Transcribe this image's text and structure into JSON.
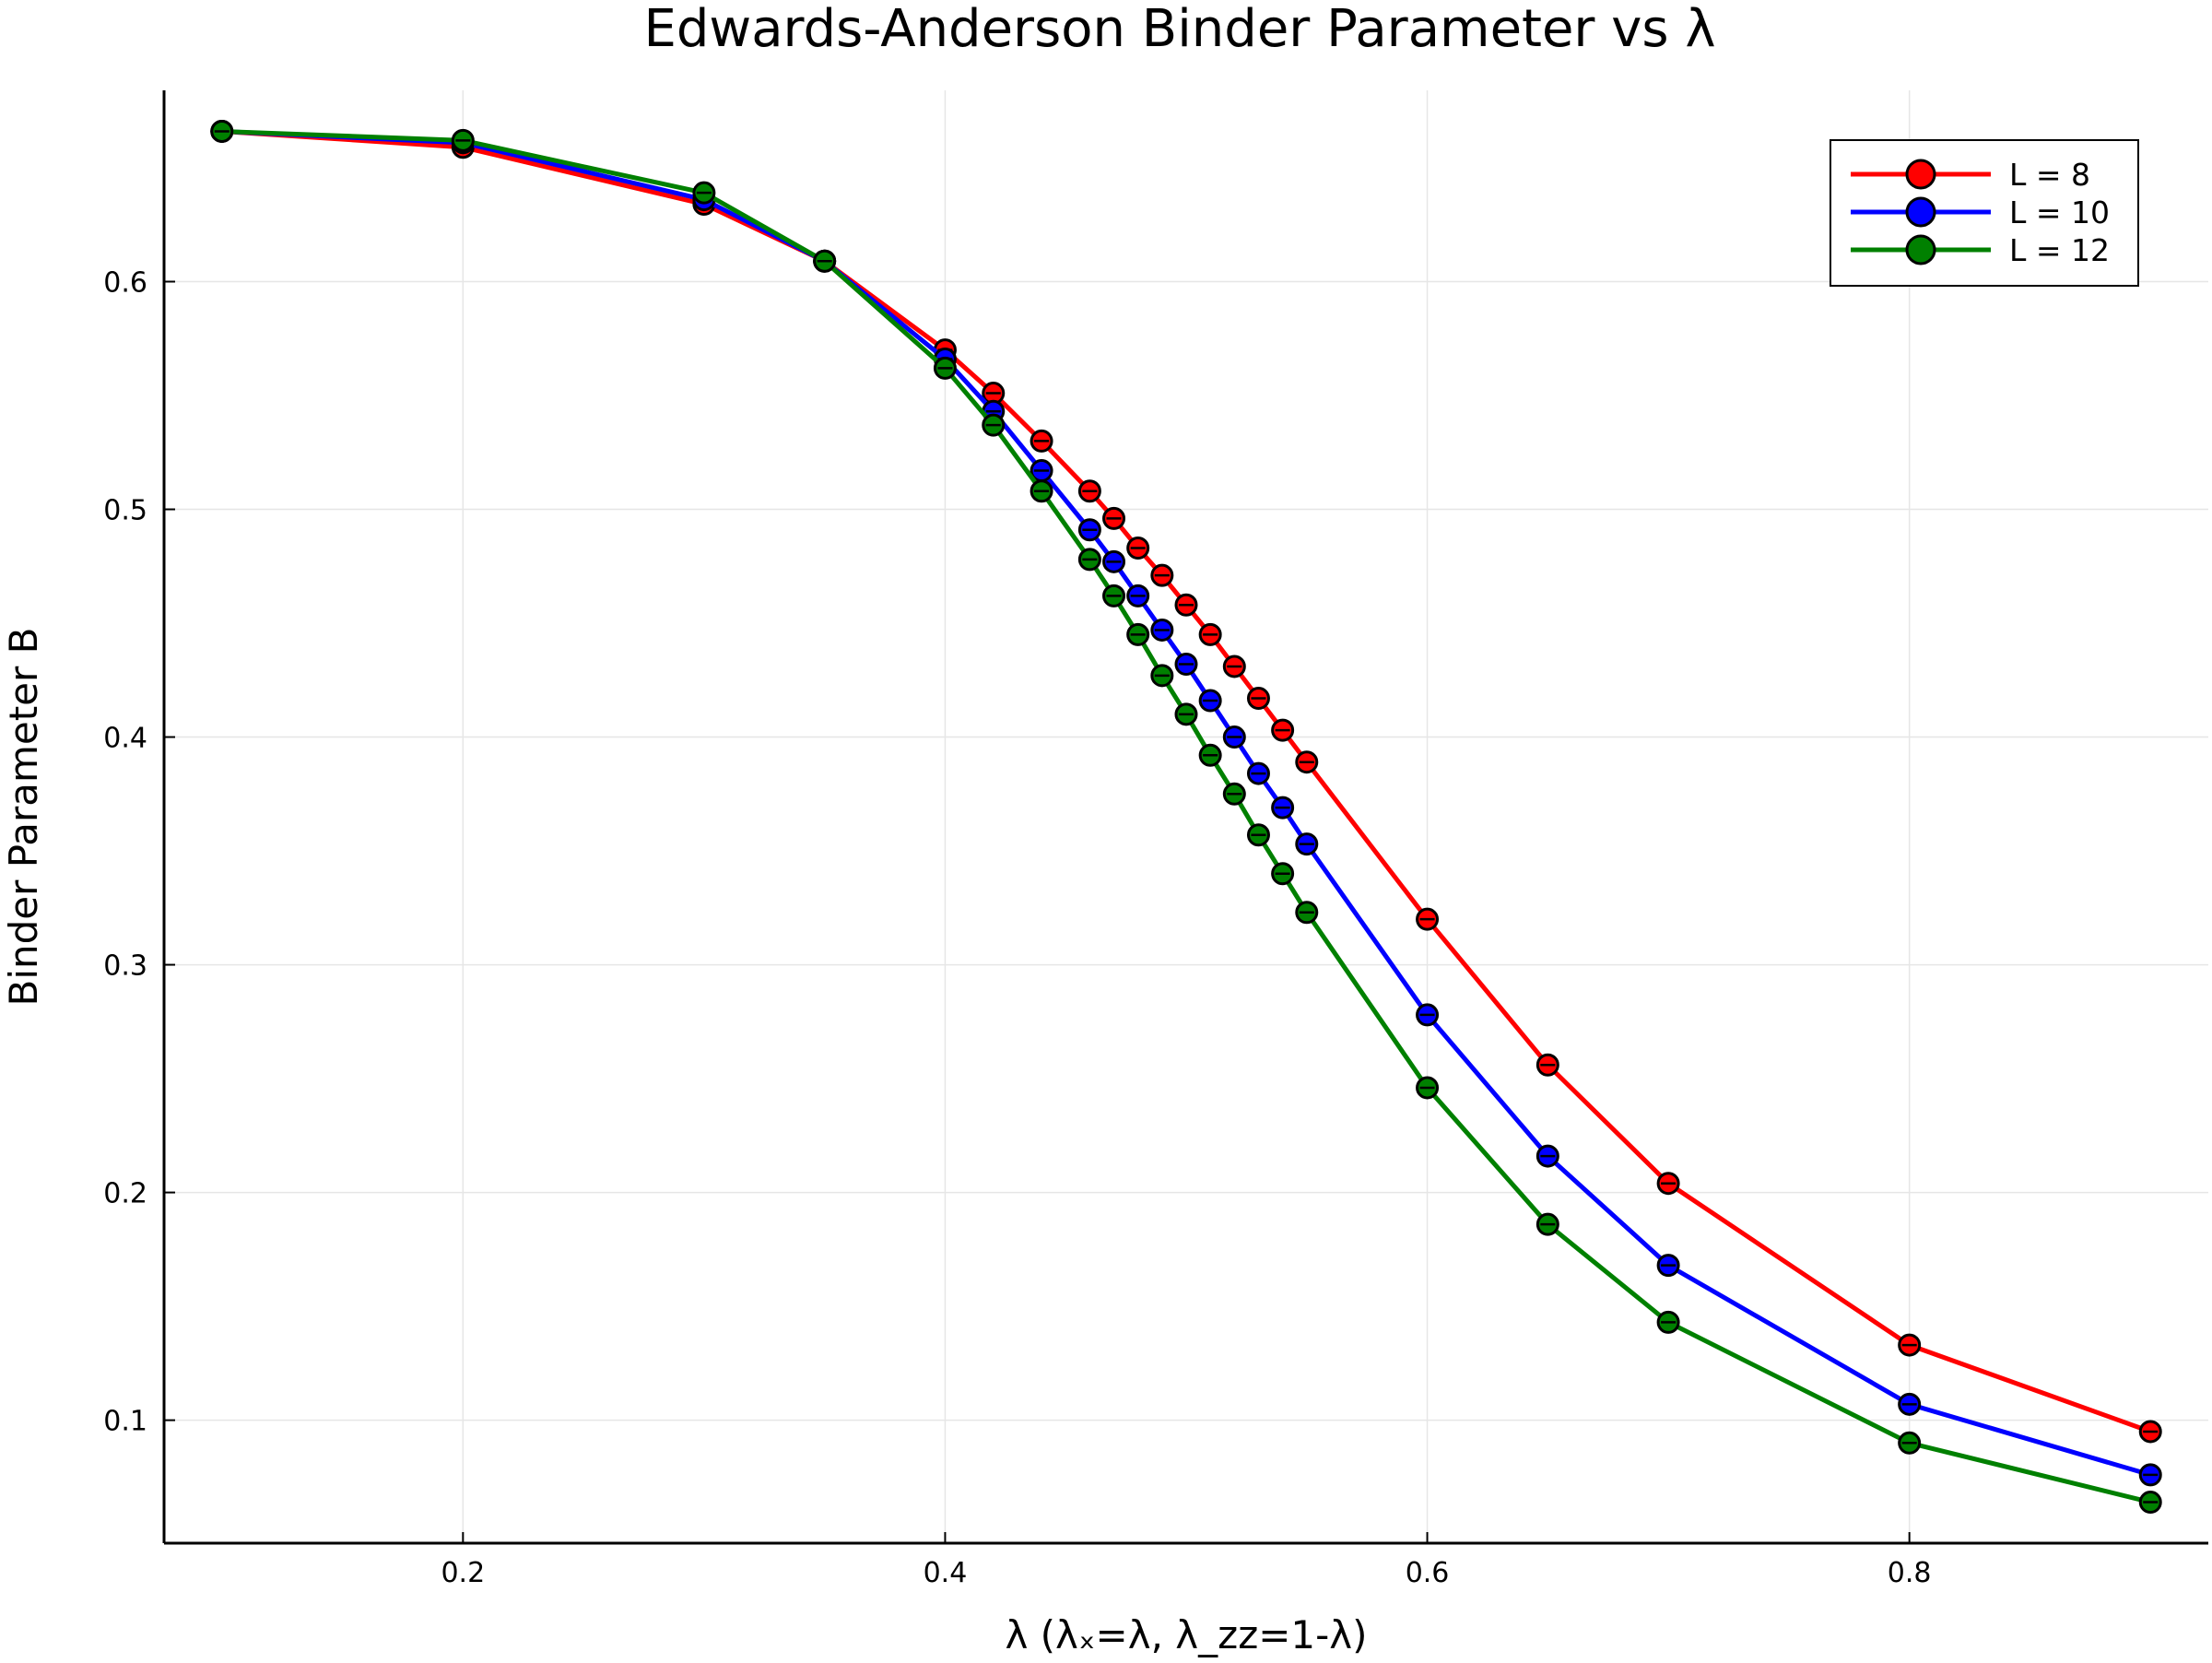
{
  "chart_data": {
    "type": "line",
    "title": "Edwards-Anderson Binder Parameter vs λ",
    "xlabel": "λ (λₓ=λ, λ_zz=1-λ)",
    "ylabel": "Binder Parameter B",
    "xlim": [
      0.076,
      0.924
    ],
    "ylim": [
      0.046,
      0.684
    ],
    "xticks": [
      0.2,
      0.4,
      0.6,
      0.8
    ],
    "xtick_labels": [
      "0.2",
      "0.4",
      "0.6",
      "0.8"
    ],
    "yticks": [
      0.1,
      0.2,
      0.3,
      0.4,
      0.5,
      0.6
    ],
    "ytick_labels": [
      "0.1",
      "0.2",
      "0.3",
      "0.4",
      "0.5",
      "0.6"
    ],
    "grid": true,
    "legend_position": "top-right",
    "markers": true,
    "x": [
      0.1,
      0.2,
      0.3,
      0.35,
      0.4,
      0.42,
      0.44,
      0.46,
      0.47,
      0.48,
      0.49,
      0.5,
      0.51,
      0.52,
      0.53,
      0.54,
      0.55,
      0.6,
      0.65,
      0.7,
      0.8,
      0.9
    ],
    "series": [
      {
        "name": "L = 8",
        "color": "#ff0000",
        "values": [
          0.666,
          0.659,
          0.634,
          0.609,
          0.57,
          0.551,
          0.53,
          0.508,
          0.496,
          0.483,
          0.471,
          0.458,
          0.445,
          0.431,
          0.417,
          0.403,
          0.389,
          0.32,
          0.256,
          0.204,
          0.133,
          0.095
        ]
      },
      {
        "name": "L = 10",
        "color": "#0000ff",
        "values": [
          0.666,
          0.661,
          0.636,
          0.609,
          0.566,
          0.543,
          0.517,
          0.491,
          0.477,
          0.462,
          0.447,
          0.432,
          0.416,
          0.4,
          0.384,
          0.369,
          0.353,
          0.278,
          0.216,
          0.168,
          0.107,
          0.076
        ]
      },
      {
        "name": "L = 12",
        "color": "#008000",
        "values": [
          0.666,
          0.662,
          0.639,
          0.609,
          0.562,
          0.537,
          0.508,
          0.478,
          0.462,
          0.445,
          0.427,
          0.41,
          0.392,
          0.375,
          0.357,
          0.34,
          0.323,
          0.246,
          0.186,
          0.143,
          0.09,
          0.064
        ]
      }
    ]
  }
}
